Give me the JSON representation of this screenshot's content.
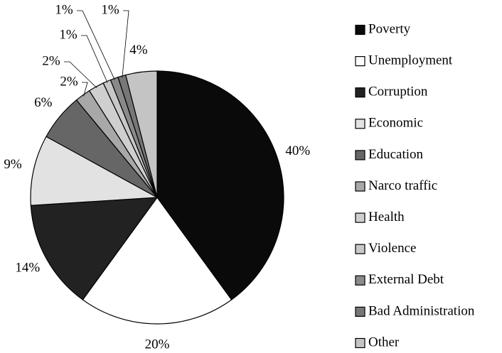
{
  "chart_data": {
    "type": "pie",
    "categories": [
      "Poverty",
      "Unemployment",
      "Corruption",
      "Economic",
      "Education",
      "Narco traffic",
      "Health",
      "Violence",
      "External Debt",
      "Bad Administration",
      "Other"
    ],
    "values": [
      40,
      20,
      14,
      9,
      6,
      2,
      2,
      1,
      1,
      1,
      4
    ],
    "value_labels": [
      "40%",
      "20%",
      "14%",
      "9%",
      "6%",
      "2%",
      "2%",
      "1%",
      "1%",
      "1%",
      "4%"
    ],
    "colors": [
      "#0a0a0a",
      "#ffffff",
      "#222222",
      "#e2e2e2",
      "#666666",
      "#a8a8a8",
      "#cfcfcf",
      "#c8c8c8",
      "#8a8a8a",
      "#777777",
      "#c4c4c4"
    ],
    "legend": "right"
  }
}
